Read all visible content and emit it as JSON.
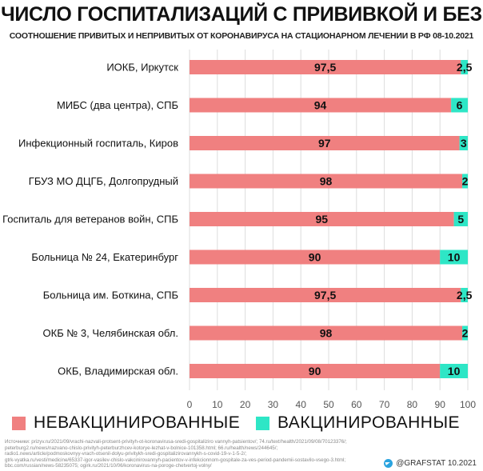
{
  "header": {
    "title": "ЧИСЛО ГОСПИТАЛИЗАЦИЙ С ПРИВИВКОЙ И БЕЗ",
    "subtitle": "СООТНОШЕНИЕ ПРИВИТЫХ И НЕПРИВИТЫХ ОТ КОРОНАВИРУСА НА СТАЦИОНАРНОМ ЛЕЧЕНИИ В РФ 08-10.2021"
  },
  "chart_data": {
    "type": "bar",
    "orientation": "horizontal",
    "stacked": true,
    "categories": [
      "ИОКБ, Иркутск",
      "МИБС (два центра), СПБ",
      "Инфекционный госпиталь, Киров",
      "ГБУЗ МО ДЦГБ, Долгопрудный",
      "Госпиталь для ветеранов войн, СПБ",
      "Больница № 24, Екатеринбург",
      "Больница им. Боткина, СПБ",
      "ОКБ № 3, Челябинская обл.",
      "ОКБ, Владимирская обл."
    ],
    "series": [
      {
        "name": "НЕВАКЦИНИРОВАННЫЕ",
        "color": "#f08080",
        "values": [
          97.5,
          94,
          97,
          98,
          95,
          90,
          97.5,
          98,
          90
        ],
        "labels": [
          "97,5",
          "94",
          "97",
          "98",
          "95",
          "90",
          "97,5",
          "98",
          "90"
        ]
      },
      {
        "name": "ВАКЦИНИРОВАННЫЕ",
        "color": "#2ee6c6",
        "values": [
          2.5,
          6,
          3,
          2,
          5,
          10,
          2.5,
          2,
          10
        ],
        "labels": [
          "2,5",
          "6",
          "3",
          "2",
          "5",
          "10",
          "2,5",
          "2",
          "10"
        ]
      }
    ],
    "xlim": [
      0,
      100
    ],
    "xticks": [
      "0",
      "10",
      "20",
      "30",
      "40",
      "50",
      "60",
      "70",
      "80",
      "90",
      "100"
    ],
    "grid": true,
    "legend": "bottom"
  },
  "sources": [
    "Источники: prizyv.ru/2021/09/vrachi-nazvali-protsent-privityh-ot-koronavirusa-sredi-gospitaliziro vannyh-patsientov/; 74.ru/text/health/2021/09/08/70123376/;",
    "peterburg2.ru/news/nazvano-chislo-privityh-peterburzhcev-kotorye-lezhat-v-bolnice-101358.html; 66.ru/health/news/244645/;",
    "radio1.news/article/podmoskovnyy-vrach-otsenil-dolyu-privitykh-sredi-gospitalizirovannykh-s-covid-19-v-1-5-2/;",
    "gtrk-vyatka.ru/vesti/medicine/65337-igor-vasilev-chislo-vakcinirovannyh-pacientov-v-infekcionnom-gospitale-za-ves-period-pandemii-sostavilo-vsego-3.html;",
    "bbc.com/russian/news-58235075; ogirk.ru/2021/10/06/koronavirus-na-poroge-chetvertoj-volny/"
  ],
  "brand": {
    "text": "@GRAFSTAT 10.2021",
    "icon": "telegram-icon"
  }
}
